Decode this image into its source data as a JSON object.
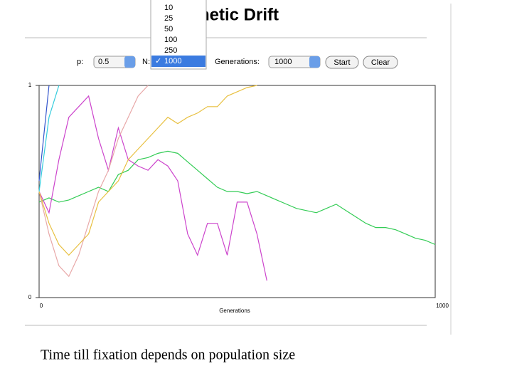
{
  "header": {
    "title": "Genetic Drift"
  },
  "controls": {
    "p_label": "p:",
    "p_value": "0.5",
    "n_label": "N:",
    "n_options": [
      "10",
      "25",
      "50",
      "100",
      "250",
      "1000"
    ],
    "generations_label": "Generations:",
    "generations_value": "1000",
    "start": "Start",
    "clear": "Clear"
  },
  "chart_data": {
    "type": "line",
    "x_label": "Generations",
    "x": [
      0,
      25,
      50,
      75,
      100,
      125,
      150,
      175,
      200,
      225,
      250,
      275,
      300,
      325,
      350,
      375,
      400,
      425,
      450,
      475,
      500,
      525,
      550,
      575,
      600,
      625,
      650,
      675,
      700,
      725,
      750,
      775,
      800,
      825,
      850,
      875,
      900,
      925,
      950,
      975,
      1000
    ],
    "xlim": [
      0,
      1000
    ],
    "xticks": [
      0,
      1000
    ],
    "ylim": [
      0,
      1
    ],
    "yticks": [
      0,
      1
    ],
    "series": [
      {
        "color": "#33cc55",
        "values": [
          0.45,
          0.47,
          0.45,
          0.46,
          0.48,
          0.5,
          0.52,
          0.5,
          0.58,
          0.6,
          0.65,
          0.66,
          0.68,
          0.69,
          0.68,
          0.64,
          0.6,
          0.56,
          0.52,
          0.5,
          0.5,
          0.49,
          0.5,
          0.48,
          0.46,
          0.44,
          0.42,
          0.41,
          0.4,
          0.42,
          0.44,
          0.41,
          0.38,
          0.35,
          0.33,
          0.33,
          0.32,
          0.3,
          0.28,
          0.27,
          0.25
        ]
      },
      {
        "color": "#cc44cc",
        "values": [
          0.5,
          0.4,
          0.65,
          0.85,
          0.9,
          0.95,
          0.75,
          0.6,
          0.8,
          0.65,
          0.62,
          0.6,
          0.65,
          0.62,
          0.55,
          0.3,
          0.2,
          0.35,
          0.35,
          0.2,
          0.45,
          0.45,
          0.3,
          0.08,
          null,
          null,
          null,
          null,
          null,
          null,
          null,
          null,
          null,
          null,
          null,
          null,
          null,
          null,
          null,
          null,
          null
        ]
      },
      {
        "color": "#e8a8a8",
        "values": [
          0.5,
          0.3,
          0.15,
          0.1,
          0.2,
          0.35,
          0.5,
          0.6,
          0.75,
          0.85,
          0.95,
          1.0,
          null,
          null,
          null,
          null,
          null,
          null,
          null,
          null,
          null,
          null,
          null,
          null,
          null,
          null,
          null,
          null,
          null,
          null,
          null,
          null,
          null,
          null,
          null,
          null,
          null,
          null,
          null,
          null,
          null
        ]
      },
      {
        "color": "#e8c040",
        "values": [
          0.5,
          0.35,
          0.25,
          0.2,
          0.25,
          0.3,
          0.45,
          0.5,
          0.55,
          0.65,
          0.7,
          0.75,
          0.8,
          0.85,
          0.82,
          0.85,
          0.87,
          0.9,
          0.9,
          0.95,
          0.97,
          0.99,
          1.0,
          null,
          null,
          null,
          null,
          null,
          null,
          null,
          null,
          null,
          null,
          null,
          null,
          null,
          null,
          null,
          null,
          null,
          null
        ]
      },
      {
        "color": "#33ccdd",
        "values": [
          0.5,
          0.85,
          1.0,
          null,
          null,
          null,
          null,
          null,
          null,
          null,
          null,
          null,
          null,
          null,
          null,
          null,
          null,
          null,
          null,
          null,
          null,
          null,
          null,
          null,
          null,
          null,
          null,
          null,
          null,
          null,
          null,
          null,
          null,
          null,
          null,
          null,
          null,
          null,
          null,
          null,
          null
        ]
      },
      {
        "color": "#3355cc",
        "values": [
          0.55,
          1.0,
          null,
          null,
          null,
          null,
          null,
          null,
          null,
          null,
          null,
          null,
          null,
          null,
          null,
          null,
          null,
          null,
          null,
          null,
          null,
          null,
          null,
          null,
          null,
          null,
          null,
          null,
          null,
          null,
          null,
          null,
          null,
          null,
          null,
          null,
          null,
          null,
          null,
          null,
          null
        ]
      }
    ]
  },
  "caption": "Time till fixation depends on population size"
}
